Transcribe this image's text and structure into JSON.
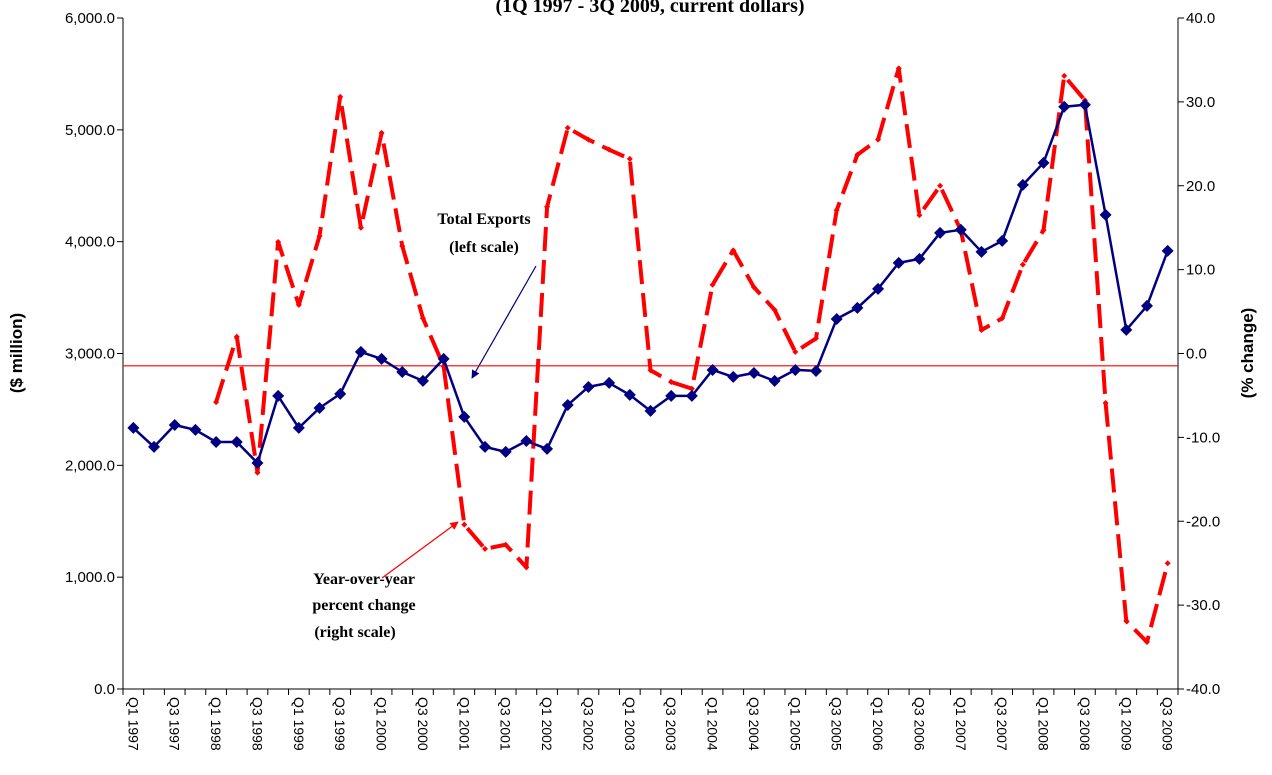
{
  "chart_data": {
    "type": "line",
    "subtitle": "(1Q 1997 - 3Q 2009, current dollars)",
    "y_label": "($ million)",
    "y2_label": "(% change)",
    "categories": [
      "Q1 1997",
      null,
      "Q3 1997",
      null,
      "Q1 1998",
      null,
      "Q3 1998",
      null,
      "Q1 1999",
      null,
      "Q3 1999",
      null,
      "Q1 2000",
      null,
      "Q3 2000",
      null,
      "Q1 2001",
      null,
      "Q3 2001",
      null,
      "Q1 2002",
      null,
      "Q3 2002",
      null,
      "Q1 2003",
      null,
      "Q3 2003",
      null,
      "Q1 2004",
      null,
      "Q3 2004",
      null,
      "Q1 2005",
      null,
      "Q3 2005",
      null,
      "Q1 2006",
      null,
      "Q3 2006",
      null,
      "Q1 2007",
      null,
      "Q3 2007",
      null,
      "Q1 2008",
      null,
      "Q3 2008",
      null,
      "Q1 2009",
      null,
      "Q3 2009"
    ],
    "series": [
      {
        "name": "Total Exports",
        "color": "#000080",
        "axis": "y",
        "dashed": false,
        "values": [
          2335,
          2165,
          2361,
          2317,
          2209,
          2209,
          2021,
          2621,
          2335,
          2513,
          2639,
          3014,
          2952,
          2835,
          2755,
          2952,
          2433,
          2165,
          2120,
          2218,
          2147,
          2540,
          2701,
          2737,
          2630,
          2487,
          2621,
          2621,
          2853,
          2791,
          2826,
          2755,
          2853,
          2844,
          3309,
          3408,
          3578,
          3810,
          3846,
          4079,
          4106,
          3909,
          4007,
          4508,
          4705,
          5206,
          5224,
          4240,
          3211,
          3426,
          3918
        ]
      },
      {
        "name": "Year-over-year percent change",
        "color": "#ff0000",
        "axis": "y2",
        "dashed": true,
        "values": [
          null,
          null,
          null,
          null,
          -5.8,
          2.0,
          -14.2,
          13.3,
          5.8,
          14.0,
          30.6,
          15.0,
          26.3,
          12.8,
          4.2,
          -1.5,
          -20.4,
          -23.3,
          -22.8,
          -25.5,
          17.5,
          26.9,
          25.5,
          24.3,
          23.2,
          -2.0,
          -3.4,
          -4.2,
          8.2,
          12.3,
          7.9,
          5.2,
          0.2,
          1.8,
          17.1,
          23.7,
          25.5,
          34.0,
          16.5,
          20.0,
          14.7,
          2.8,
          4.2,
          10.6,
          14.7,
          33.1,
          30.2,
          -5.9,
          -31.9,
          -34.4,
          -25.0
        ]
      }
    ],
    "ylim": [
      0,
      6000
    ],
    "yticks": [
      {
        "value": 0,
        "label": "0.0"
      },
      {
        "value": 1000,
        "label": "1,000.0"
      },
      {
        "value": 2000,
        "label": "2,000.0"
      },
      {
        "value": 3000,
        "label": "3,000.0"
      },
      {
        "value": 4000,
        "label": "4,000.0"
      },
      {
        "value": 5000,
        "label": "5,000.0"
      },
      {
        "value": 6000,
        "label": "6,000.0"
      }
    ],
    "y2lim": [
      -40,
      40
    ],
    "y2ticks": [
      {
        "value": -40,
        "label": "-40.0"
      },
      {
        "value": -30,
        "label": "-30.0"
      },
      {
        "value": -20,
        "label": "-20.0"
      },
      {
        "value": -10,
        "label": "-10.0"
      },
      {
        "value": 0,
        "label": "0.0"
      },
      {
        "value": 10,
        "label": "10.0"
      },
      {
        "value": 20,
        "label": "20.0"
      },
      {
        "value": 30,
        "label": "30.0"
      },
      {
        "value": 40,
        "label": "40.0"
      }
    ],
    "reference_line": {
      "value": 2890,
      "axis": "y",
      "color": "#ff0000"
    },
    "annotations": [
      {
        "lines": [
          "Total Exports",
          "(left scale)"
        ]
      },
      {
        "lines": [
          "Year-over-year",
          "percent change",
          "(right scale)"
        ]
      }
    ]
  }
}
